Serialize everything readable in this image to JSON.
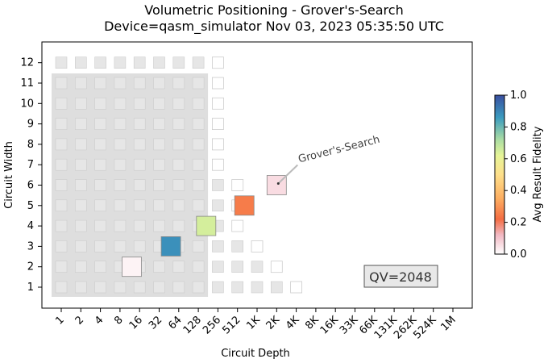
{
  "title_line1": "Volumetric Positioning - Grover's-Search",
  "title_line2": "Device=qasm_simulator  Nov 03, 2023 05:35:50 UTC",
  "chart_data": {
    "type": "heatmap",
    "xlabel": "Circuit Depth",
    "ylabel": "Circuit Width",
    "x_ticks": [
      "1",
      "2",
      "4",
      "8",
      "16",
      "32",
      "64",
      "128",
      "256",
      "512",
      "1K",
      "2K",
      "4K",
      "8K",
      "16K",
      "33K",
      "66K",
      "131K",
      "262K",
      "524K",
      "1M"
    ],
    "y_ticks": [
      "1",
      "2",
      "3",
      "4",
      "5",
      "6",
      "7",
      "8",
      "9",
      "10",
      "11",
      "12"
    ],
    "qv_label": "QV=2048",
    "colorbar": {
      "label": "Avg Result Fidelity",
      "min": 0.0,
      "max": 1.0,
      "ticks": [
        "0.0",
        "0.2",
        "0.4",
        "0.6",
        "0.8",
        "1.0"
      ]
    },
    "qv_region": {
      "width_qubits": 11,
      "depth_index_max": 7
    },
    "grid_filled_depth_index_max_by_width": [
      12,
      8,
      8,
      8,
      8,
      8,
      8,
      8,
      8,
      8,
      8,
      8
    ],
    "grid_outline_depth_index_by_width": [
      12,
      9,
      9,
      9,
      9,
      9,
      8,
      8,
      8,
      8,
      8,
      8
    ],
    "results": [
      {
        "width": 2,
        "depth_index": 3.6,
        "fidelity": 0.02,
        "size": 1.0
      },
      {
        "width": 3,
        "depth_index": 5.6,
        "fidelity": 0.88,
        "size": 1.0
      },
      {
        "width": 4,
        "depth_index": 7.4,
        "fidelity": 0.65,
        "size": 1.0
      },
      {
        "width": 5,
        "depth_index": 9.35,
        "fidelity": 0.25,
        "size": 1.0
      },
      {
        "width": 6,
        "depth_index": 11.0,
        "fidelity": 0.06,
        "size": 1.0
      }
    ],
    "annotation": {
      "text": "Grover's-Search",
      "width": 6,
      "depth_index": 11.0
    }
  }
}
